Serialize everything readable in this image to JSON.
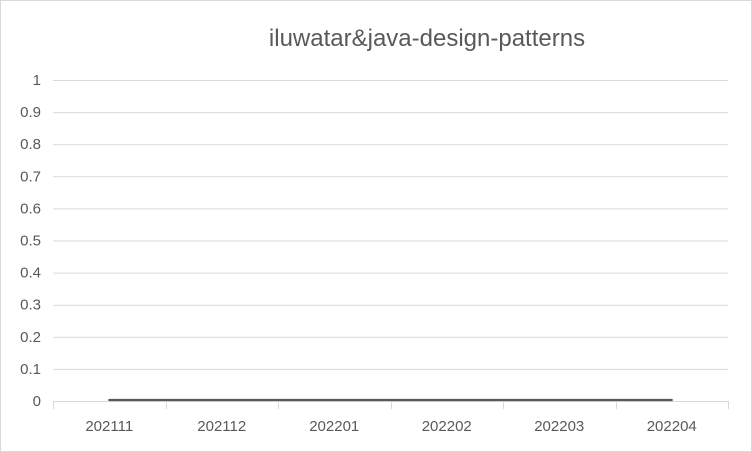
{
  "chart_data": {
    "type": "line",
    "title": "iluwatar&java-design-patterns",
    "categories": [
      "202111",
      "202112",
      "202201",
      "202202",
      "202203",
      "202204"
    ],
    "series": [
      {
        "values": [
          0,
          0,
          0,
          0,
          0,
          0
        ],
        "color": "#595959"
      }
    ],
    "ylim": [
      0,
      1
    ],
    "yticks": [
      "0",
      "0.1",
      "0.2",
      "0.3",
      "0.4",
      "0.5",
      "0.6",
      "0.7",
      "0.8",
      "0.9",
      "1"
    ],
    "grid": true,
    "legend": "none",
    "colors": {
      "gridline": "#d9d9d9",
      "text": "#595959",
      "line": "#595959"
    }
  }
}
